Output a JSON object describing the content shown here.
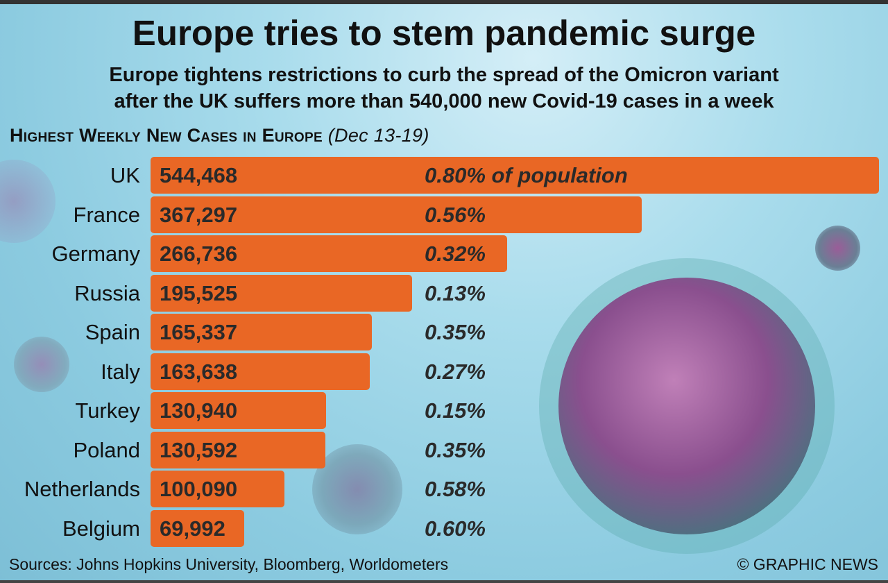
{
  "title": "Europe tries to stem pandemic surge",
  "subtitle_line1": "Europe tightens restrictions to curb the spread of the Omicron variant",
  "subtitle_line2": "after the UK suffers more than 540,000 new Covid-19 cases in a week",
  "section_title": "Highest Weekly New Cases in Europe",
  "section_period": "(Dec 13-19)",
  "sources": "Sources: Johns Hopkins University, Bloomberg, Worldometers",
  "credit": "© GRAPHIC NEWS",
  "colors": {
    "bar": "#e96725"
  },
  "chart_data": {
    "type": "bar",
    "orientation": "horizontal",
    "title": "Highest Weekly New Cases in Europe (Dec 13-19)",
    "categories": [
      "UK",
      "France",
      "Germany",
      "Russia",
      "Spain",
      "Italy",
      "Turkey",
      "Poland",
      "Netherlands",
      "Belgium"
    ],
    "values": [
      544468,
      367297,
      266736,
      195525,
      165337,
      163638,
      130940,
      130592,
      100090,
      69992
    ],
    "value_labels": [
      "544,468",
      "367,297",
      "266,736",
      "195,525",
      "165,337",
      "163,638",
      "130,940",
      "130,592",
      "100,090",
      "69,992"
    ],
    "percent_labels": [
      "0.80% of population",
      "0.56%",
      "0.32%",
      "0.13%",
      "0.35%",
      "0.27%",
      "0.15%",
      "0.35%",
      "0.58%",
      "0.60%"
    ],
    "percent_of_population": [
      0.8,
      0.56,
      0.32,
      0.13,
      0.35,
      0.27,
      0.15,
      0.35,
      0.58,
      0.6
    ],
    "xlim": [
      0,
      544468
    ],
    "grid": false
  }
}
